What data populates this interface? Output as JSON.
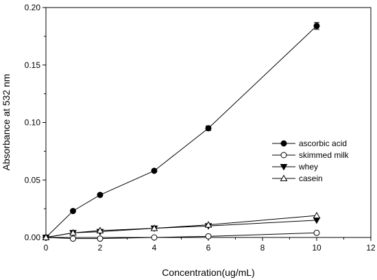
{
  "chart_data": {
    "type": "line",
    "xlabel": "Concentration(ug/mL)",
    "ylabel": "Absorbance at 532 nm",
    "xlim": [
      0,
      12
    ],
    "ylim": [
      0,
      0.2
    ],
    "x_ticks": [
      "0",
      "2",
      "4",
      "6",
      "8",
      "10",
      "12"
    ],
    "y_ticks": [
      "0.00",
      "0.05",
      "0.10",
      "0.15",
      "0.20"
    ],
    "grid": false,
    "legend_position": "right",
    "series": [
      {
        "name": "ascorbic acid",
        "marker": "filled-circle",
        "x": [
          0,
          1,
          2,
          4,
          6,
          10
        ],
        "y": [
          0.0,
          0.023,
          0.037,
          0.058,
          0.095,
          0.184
        ],
        "yerr": [
          0,
          0.001,
          0.001,
          0.001,
          0.002,
          0.003
        ]
      },
      {
        "name": "skimmed milk",
        "marker": "open-circle",
        "x": [
          0,
          1,
          2,
          4,
          6,
          10
        ],
        "y": [
          0.0,
          -0.001,
          -0.001,
          0.0,
          0.001,
          0.004
        ],
        "yerr": [
          0,
          0,
          0,
          0,
          0,
          0
        ]
      },
      {
        "name": "whey",
        "marker": "filled-triangle-down",
        "x": [
          0,
          1,
          2,
          4,
          6,
          10
        ],
        "y": [
          0.0,
          0.004,
          0.005,
          0.008,
          0.01,
          0.015
        ],
        "yerr": [
          0,
          0,
          0,
          0,
          0,
          0
        ]
      },
      {
        "name": "casein",
        "marker": "open-triangle-up",
        "x": [
          0,
          1,
          2,
          4,
          6,
          10
        ],
        "y": [
          0.0,
          0.004,
          0.006,
          0.008,
          0.011,
          0.019
        ],
        "yerr": [
          0,
          0,
          0,
          0,
          0,
          0
        ]
      }
    ]
  }
}
